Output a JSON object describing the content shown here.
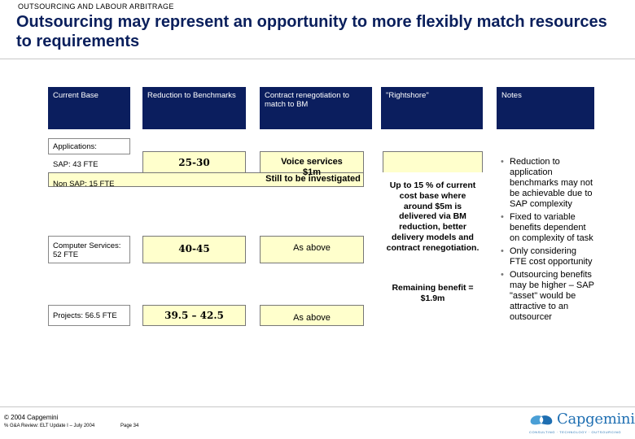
{
  "kicker": "OUTSOURCING AND LABOUR ARBITRAGE",
  "title": "Outsourcing may represent an opportunity to more flexibly match resources to requirements",
  "headers": [
    "Current Base",
    "Reduction to Benchmarks",
    "Contract renegotiation to match to BM",
    "\"Rightshore\"",
    "Notes"
  ],
  "applications_label": "Applications:",
  "rows": {
    "sap": "SAP: 43 FTE",
    "non_sap": "Non SAP: 15 FTE",
    "computer": "Computer Services: 52 FTE",
    "projects": "Projects: 56.5 FTE"
  },
  "reduction": {
    "r1": "25-30",
    "r2": "40-45",
    "r3": "39.5 – 42.5"
  },
  "contract": {
    "voice": "Voice services $1m",
    "still": "Still to be investigated",
    "as_above_1": "As above",
    "as_above_2": "As above"
  },
  "rightshore": {
    "main": "Up to 15 % of current cost base where around $5m is delivered via BM reduction, better delivery models and contract renegotiation.",
    "remaining": "Remaining benefit = $1.9m"
  },
  "notes": [
    "Reduction to application benchmarks may not be achievable due to SAP complexity",
    "Fixed to variable benefits dependent on complexity of task",
    "Only considering FTE cost opportunity",
    "Outsourcing benefits may be higher – SAP \"asset\" would be attractive to an outsourcer"
  ],
  "footer": {
    "copyright": "© 2004 Capgemini",
    "doc": "% G&A Review: ELT Update I – July 2004",
    "page": "Page 34"
  },
  "logo": {
    "text": "Capgemini",
    "tagline": "CONSULTING · TECHNOLOGY · OUTSOURCING"
  },
  "colors": {
    "navy": "#0b1e5e",
    "title": "#0a1f5c",
    "highlight": "#ffffcc",
    "logo_blue": "#1f6fb2"
  }
}
